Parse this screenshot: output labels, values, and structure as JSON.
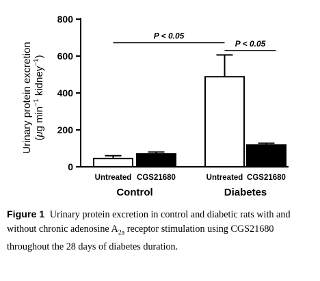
{
  "chart_data": {
    "type": "bar",
    "title": "",
    "ylabel_line1": "Urinary protein excretion",
    "ylabel_line2_parts": [
      "(",
      "μ",
      "g min",
      "−1",
      " kidney",
      "−1",
      ")"
    ],
    "ylim": [
      0,
      800
    ],
    "yticks": [
      "0",
      "200",
      "400",
      "600",
      "800"
    ],
    "tick_values": [
      0,
      200,
      400,
      600,
      800
    ],
    "groups": [
      "Control",
      "Diabetes"
    ],
    "categories": [
      "Untreated",
      "CGS21680",
      "Untreated",
      "CGS21680"
    ],
    "values": [
      45,
      70,
      488,
      118
    ],
    "errors": [
      15,
      10,
      118,
      10
    ],
    "fills": [
      "#ffffff",
      "#000000",
      "#ffffff",
      "#000000"
    ],
    "annotations": [
      {
        "text": "P < 0.05",
        "from_bar": 0,
        "to_bar": 2,
        "y": 672
      },
      {
        "text": "P < 0.05",
        "from_bar": 2,
        "to_bar": 3,
        "y": 630
      }
    ]
  },
  "caption": {
    "label": "Figure 1",
    "text_before": "Urinary protein excretion in control and diabetic rats with and without chronic adenosine A",
    "subscript": "2a",
    "text_after": " receptor stimulation using CGS21680 throughout the 28 days of diabetes duration."
  }
}
